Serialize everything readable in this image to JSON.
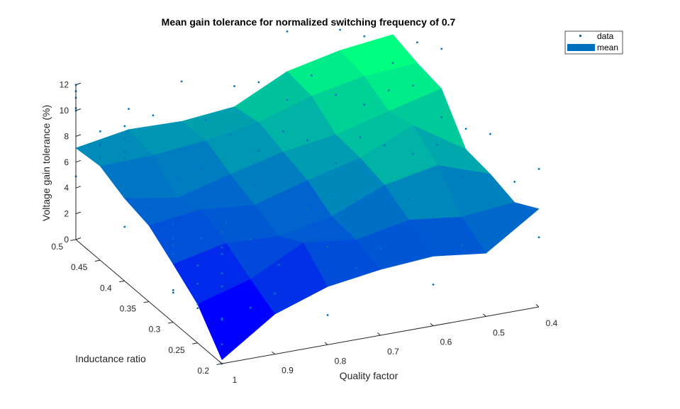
{
  "chart_data": {
    "type": "surface",
    "title": "Mean gain tolerance for normalized switching frequency of 0.7",
    "xlabel": "Quality factor",
    "ylabel": "Inductance ratio",
    "zlabel": "Voltage gain tolerance (%)",
    "x_ticks": [
      "1",
      "0.9",
      "0.8",
      "0.7",
      "0.6",
      "0.5",
      "0.4"
    ],
    "y_ticks": [
      "0.5",
      "0.45",
      "0.4",
      "0.35",
      "0.3",
      "0.25",
      "0.2"
    ],
    "z_ticks": [
      "0",
      "2",
      "4",
      "6",
      "8",
      "10",
      "12"
    ],
    "xlim": [
      0.4,
      1.0
    ],
    "ylim": [
      0.2,
      0.5
    ],
    "zlim": [
      0,
      12
    ],
    "x": [
      1.0,
      0.9,
      0.8,
      0.7,
      0.6,
      0.5,
      0.4
    ],
    "y": [
      0.2,
      0.25,
      0.3,
      0.35,
      0.4,
      0.45,
      0.5
    ],
    "mean_z": [
      [
        0.3,
        3.1,
        4.5,
        5.1,
        5.4,
        4.9,
        7.6
      ],
      [
        3.0,
        4.2,
        6.3,
        5.8,
        6.6,
        6.1,
        6.5
      ],
      [
        4.5,
        5.4,
        5.2,
        6.0,
        7.7,
        8.5,
        7.1
      ],
      [
        5.9,
        6.4,
        6.0,
        7.2,
        8.2,
        10.0,
        7.4
      ],
      [
        6.4,
        5.7,
        6.8,
        7.8,
        8.4,
        9.5,
        10.5
      ],
      [
        7.3,
        7.4,
        7.8,
        8.5,
        9.8,
        10.6,
        10.9
      ],
      [
        7.1,
        7.8,
        7.7,
        8.1,
        10.1,
        11.0,
        11.5
      ]
    ],
    "scatter_points": [
      [
        0.2,
        1.0,
        7.0
      ],
      [
        0.2,
        1.0,
        8.5
      ],
      [
        0.2,
        1.0,
        9.0
      ],
      [
        0.2,
        1.0,
        10.2
      ],
      [
        0.2,
        1.0,
        6.0
      ],
      [
        0.2,
        1.0,
        3.5
      ],
      [
        0.2,
        1.0,
        1.5
      ],
      [
        0.25,
        1.0,
        6.0
      ],
      [
        0.25,
        1.0,
        3.0
      ],
      [
        0.25,
        1.0,
        2.7
      ],
      [
        0.3,
        1.0,
        6.5
      ],
      [
        0.3,
        1.0,
        6.0
      ],
      [
        0.3,
        1.0,
        5.3
      ],
      [
        0.3,
        1.0,
        2.5
      ],
      [
        0.35,
        1.0,
        11.5
      ],
      [
        0.35,
        1.0,
        10.5
      ],
      [
        0.35,
        1.0,
        9.5
      ],
      [
        0.35,
        1.0,
        8.0
      ],
      [
        0.4,
        1.0,
        12.0
      ],
      [
        0.4,
        1.0,
        11.0
      ],
      [
        0.4,
        1.0,
        10.0
      ],
      [
        0.4,
        1.0,
        7.0
      ],
      [
        0.45,
        1.0,
        10.0
      ],
      [
        0.45,
        1.0,
        9.0
      ],
      [
        0.45,
        1.0,
        8.0
      ],
      [
        0.5,
        1.0,
        12.0
      ],
      [
        0.5,
        1.0,
        11.5
      ],
      [
        0.5,
        1.0,
        11.0
      ],
      [
        0.5,
        1.0,
        10.0
      ]
    ],
    "legend": [
      "data",
      "mean"
    ],
    "legend_position": "top-right",
    "grid": false,
    "colormap": "winter",
    "colors": {
      "data_marker": "#0072BD",
      "mean_legend": "#0072BD",
      "surface_low": "#0000ff",
      "surface_high": "#00ff80"
    }
  }
}
